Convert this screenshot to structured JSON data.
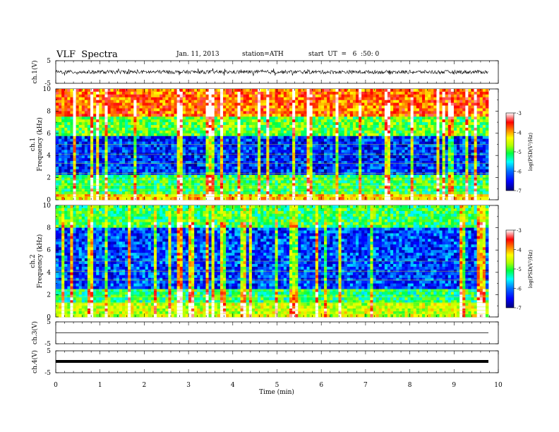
{
  "header": {
    "title": "VLF  Spectra",
    "date": "Jan. 11, 2013",
    "station": "station=ATH",
    "start": "start  UT  =   6  :50: 0"
  },
  "colors": {
    "background": "#ffffff",
    "colormap": [
      "#00007a",
      "#0000ff",
      "#0070ff",
      "#00ffff",
      "#00ff40",
      "#b0ff00",
      "#ffff00",
      "#ff8000",
      "#ff0000",
      "#ffffff"
    ]
  },
  "chart_data": [
    {
      "id": "ch1-waveform",
      "type": "line",
      "ylabel": "ch.1(V)",
      "ylim": [
        -5,
        5
      ],
      "yticks": [
        "5",
        "-5"
      ],
      "xlim": [
        0,
        10
      ],
      "description_level": "noisy waveform around 0 V, amplitude about ±1 V"
    },
    {
      "id": "ch1-spectrogram",
      "type": "heatmap",
      "ylabel_channel": "ch.1",
      "ylabel": "Frequency  (kHz)",
      "ylim": [
        0,
        10
      ],
      "yticks": [
        "0",
        "2",
        "4",
        "6",
        "8",
        "10"
      ],
      "xlim": [
        0,
        9.8
      ],
      "colorbar_label": "log(PSD(V²/Hz)",
      "colorbar_ticks": [
        "-3",
        "-4",
        "-5",
        "-6",
        "-7"
      ],
      "colorbar_range": [
        -7,
        -3
      ],
      "bands_khz": [
        {
          "from": 0,
          "to": 0.6,
          "level": -4.2
        },
        {
          "from": 0.6,
          "to": 2.2,
          "level": -5.2
        },
        {
          "from": 2.2,
          "to": 5.8,
          "level": -6.4
        },
        {
          "from": 5.8,
          "to": 7.6,
          "level": -5.0
        },
        {
          "from": 7.6,
          "to": 10,
          "level": -3.8
        }
      ]
    },
    {
      "id": "ch2-spectrogram",
      "type": "heatmap",
      "ylabel_channel": "ch.2",
      "ylabel": "Frequency  (kHz)",
      "ylim": [
        0,
        10
      ],
      "yticks": [
        "0",
        "2",
        "4",
        "6",
        "8",
        "10"
      ],
      "xlim": [
        0,
        9.8
      ],
      "colorbar_label": "log(PSD(V²/Hz)",
      "colorbar_ticks": [
        "-3",
        "-4",
        "-5",
        "-6",
        "-7"
      ],
      "colorbar_range": [
        -7,
        -3
      ],
      "bands_khz": [
        {
          "from": 0,
          "to": 1.2,
          "level": -4.6
        },
        {
          "from": 1.2,
          "to": 2.5,
          "level": -5.3
        },
        {
          "from": 2.5,
          "to": 8.0,
          "level": -6.3
        },
        {
          "from": 8.0,
          "to": 10,
          "level": -5.2
        }
      ]
    },
    {
      "id": "ch3-waveform",
      "type": "line",
      "ylabel": "ch.3(V)",
      "ylim": [
        -5,
        5
      ],
      "yticks": [
        "5",
        "-5"
      ],
      "xlim": [
        0,
        10
      ],
      "description_level": "flat line near 0 V"
    },
    {
      "id": "ch4-waveform",
      "type": "line",
      "ylabel": "ch.4(V)",
      "ylim": [
        -5,
        5
      ],
      "yticks": [
        "5",
        "-5"
      ],
      "xlim": [
        0,
        10
      ],
      "description_level": "thick flat band near 0 V"
    }
  ],
  "x_axis": {
    "label": "Time  (min)",
    "ticks": [
      "0",
      "1",
      "2",
      "3",
      "4",
      "5",
      "6",
      "7",
      "8",
      "9",
      "10"
    ],
    "range": [
      0,
      10
    ]
  }
}
